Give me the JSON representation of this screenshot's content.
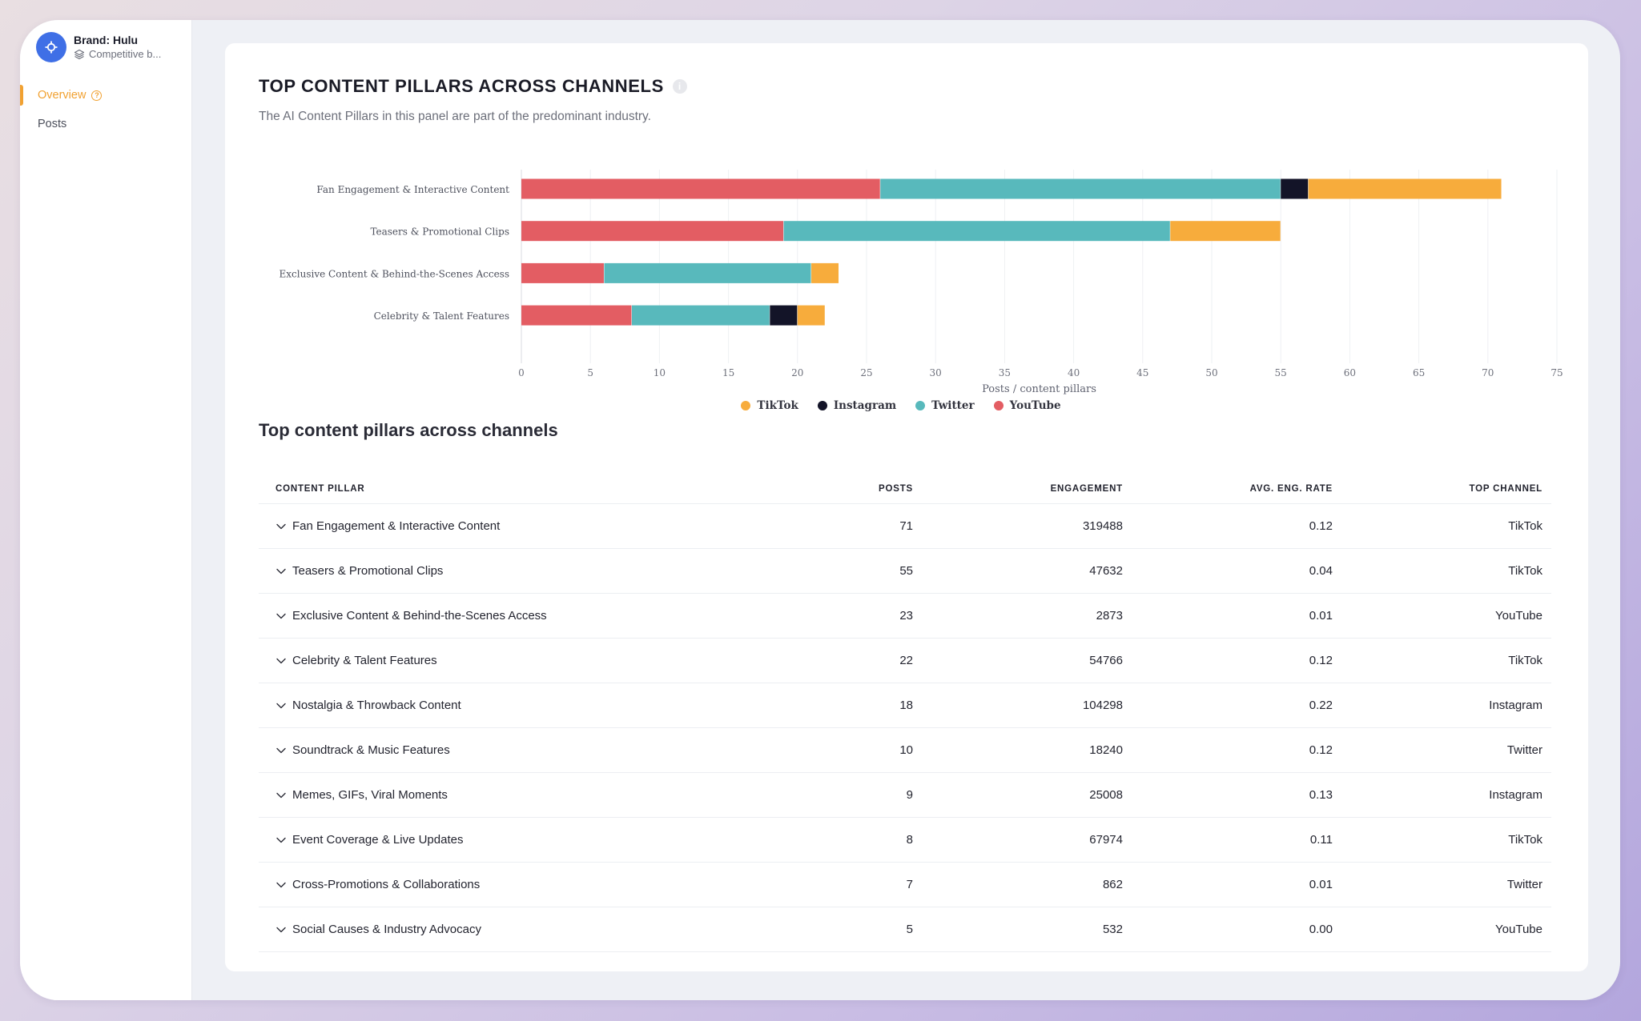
{
  "sidebar": {
    "brand_name": "Brand: Hulu",
    "brand_sub": "Competitive b...",
    "nav": [
      {
        "label": "Overview",
        "active": true
      },
      {
        "label": "Posts",
        "active": false
      }
    ]
  },
  "panel": {
    "title": "TOP CONTENT PILLARS ACROSS CHANNELS",
    "subtitle": "The AI Content Pillars in this panel are part of the predominant industry."
  },
  "chart_data": {
    "type": "bar",
    "orientation": "horizontal",
    "stacked": true,
    "categories": [
      "Fan Engagement & Interactive Content",
      "Teasers & Promotional Clips",
      "Exclusive Content & Behind-the-Scenes Access",
      "Celebrity & Talent Features"
    ],
    "series": [
      {
        "name": "YouTube",
        "color": "#e35d63",
        "values": [
          26,
          19,
          6,
          8
        ]
      },
      {
        "name": "Twitter",
        "color": "#58b9bc",
        "values": [
          29,
          28,
          15,
          10
        ]
      },
      {
        "name": "Instagram",
        "color": "#131428",
        "values": [
          2,
          0,
          0,
          2
        ]
      },
      {
        "name": "TikTok",
        "color": "#f7ac3c",
        "values": [
          14,
          8,
          2,
          2
        ]
      }
    ],
    "legend_order": [
      "TikTok",
      "Instagram",
      "Twitter",
      "YouTube"
    ],
    "xlabel": "Posts / content pillars",
    "xlim": [
      0,
      75
    ],
    "xticks": [
      "0",
      "5",
      "10",
      "15",
      "20",
      "25",
      "30",
      "35",
      "40",
      "45",
      "50",
      "55",
      "60",
      "65",
      "70",
      "75"
    ],
    "grid": true,
    "legend_position": "bottom"
  },
  "table": {
    "title": "Top content pillars across channels",
    "headers": {
      "pillar": "CONTENT PILLAR",
      "posts": "POSTS",
      "engagement": "ENGAGEMENT",
      "rate": "AVG. ENG. RATE",
      "channel": "TOP CHANNEL"
    },
    "rows": [
      {
        "pillar": "Fan Engagement & Interactive Content",
        "posts": "71",
        "engagement": "319488",
        "rate": "0.12",
        "channel": "TikTok"
      },
      {
        "pillar": "Teasers & Promotional Clips",
        "posts": "55",
        "engagement": "47632",
        "rate": "0.04",
        "channel": "TikTok"
      },
      {
        "pillar": "Exclusive Content & Behind-the-Scenes Access",
        "posts": "23",
        "engagement": "2873",
        "rate": "0.01",
        "channel": "YouTube"
      },
      {
        "pillar": "Celebrity & Talent Features",
        "posts": "22",
        "engagement": "54766",
        "rate": "0.12",
        "channel": "TikTok"
      },
      {
        "pillar": "Nostalgia & Throwback Content",
        "posts": "18",
        "engagement": "104298",
        "rate": "0.22",
        "channel": "Instagram"
      },
      {
        "pillar": "Soundtrack & Music Features",
        "posts": "10",
        "engagement": "18240",
        "rate": "0.12",
        "channel": "Twitter"
      },
      {
        "pillar": "Memes, GIFs, Viral Moments",
        "posts": "9",
        "engagement": "25008",
        "rate": "0.13",
        "channel": "Instagram"
      },
      {
        "pillar": "Event Coverage & Live Updates",
        "posts": "8",
        "engagement": "67974",
        "rate": "0.11",
        "channel": "TikTok"
      },
      {
        "pillar": "Cross-Promotions & Collaborations",
        "posts": "7",
        "engagement": "862",
        "rate": "0.01",
        "channel": "Twitter"
      },
      {
        "pillar": "Social Causes & Industry Advocacy",
        "posts": "5",
        "engagement": "532",
        "rate": "0.00",
        "channel": "YouTube"
      }
    ]
  }
}
